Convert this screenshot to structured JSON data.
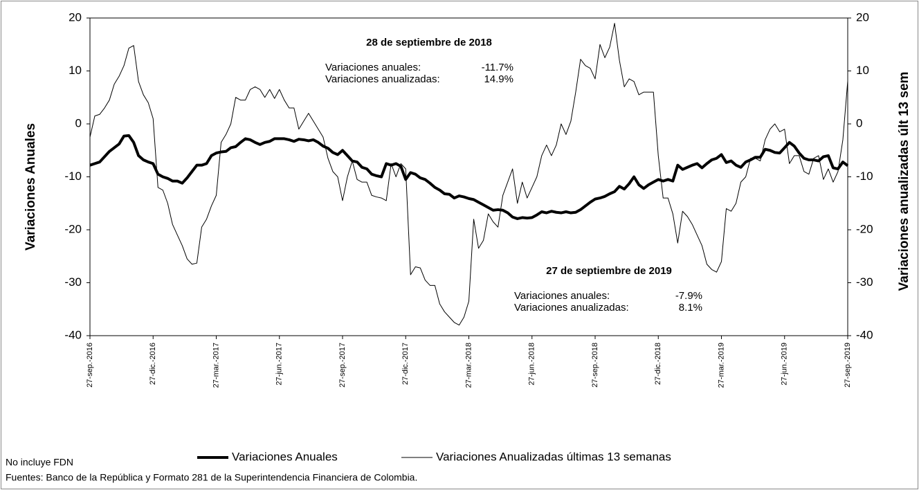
{
  "chart_data": {
    "type": "line",
    "categories": [
      "27-sep.-2016",
      null,
      null,
      null,
      null,
      null,
      null,
      null,
      null,
      null,
      null,
      null,
      null,
      "27-dic.-2016",
      null,
      null,
      null,
      null,
      null,
      null,
      null,
      null,
      null,
      null,
      null,
      null,
      "27-mar.-2017",
      null,
      null,
      null,
      null,
      null,
      null,
      null,
      null,
      null,
      null,
      null,
      null,
      "27-jun.-2017",
      null,
      null,
      null,
      null,
      null,
      null,
      null,
      null,
      null,
      null,
      null,
      null,
      "27-sep.-2017",
      null,
      null,
      null,
      null,
      null,
      null,
      null,
      null,
      null,
      null,
      null,
      null,
      "27-dic.-2017",
      null,
      null,
      null,
      null,
      null,
      null,
      null,
      null,
      null,
      null,
      null,
      null,
      "27-mar.-2018",
      null,
      null,
      null,
      null,
      null,
      null,
      null,
      null,
      null,
      null,
      null,
      null,
      "27-jun.-2018",
      null,
      null,
      null,
      null,
      null,
      null,
      null,
      null,
      null,
      null,
      null,
      null,
      "27-sep.-2018",
      null,
      null,
      null,
      null,
      null,
      null,
      null,
      null,
      null,
      null,
      null,
      null,
      "27-dic.-2018",
      null,
      null,
      null,
      null,
      null,
      null,
      null,
      null,
      null,
      null,
      null,
      null,
      "27-mar.-2019",
      null,
      null,
      null,
      null,
      null,
      null,
      null,
      null,
      null,
      null,
      null,
      null,
      "27-jun.-2019",
      null,
      null,
      null,
      null,
      null,
      null,
      null,
      null,
      null,
      null,
      null,
      null,
      "27-sep.-2019"
    ],
    "series": [
      {
        "name": "Variaciones Anuales",
        "color": "#000000",
        "width": 4,
        "values": [
          -7.8,
          -7.5,
          -7.2,
          -6.2,
          -5.2,
          -4.5,
          -3.8,
          -2.3,
          -2.2,
          -3.5,
          -6,
          -6.8,
          -7.2,
          -7.5,
          -9.5,
          -10,
          -10.3,
          -10.8,
          -10.8,
          -11.2,
          -10.2,
          -9,
          -7.8,
          -7.8,
          -7.5,
          -6,
          -5.5,
          -5.3,
          -5.2,
          -4.5,
          -4.3,
          -3.5,
          -2.8,
          -3,
          -3.5,
          -3.9,
          -3.5,
          -3.3,
          -2.8,
          -2.8,
          -2.8,
          -3,
          -3.3,
          -2.9,
          -3,
          -3.2,
          -3,
          -3.5,
          -4.2,
          -4.6,
          -5.4,
          -5.8,
          -5,
          -6,
          -7,
          -7.2,
          -8.2,
          -8.5,
          -9.5,
          -9.8,
          -10,
          -7.5,
          -7.8,
          -7.5,
          -8,
          -10.5,
          -9.2,
          -9.5,
          -10.2,
          -10.5,
          -11.2,
          -12,
          -12.5,
          -13.2,
          -13.3,
          -14,
          -13.6,
          -13.8,
          -14.1,
          -14.3,
          -14.8,
          -15.3,
          -15.8,
          -16.3,
          -16.2,
          -16.3,
          -16.8,
          -17.6,
          -17.9,
          -17.7,
          -17.8,
          -17.7,
          -17.2,
          -16.6,
          -16.8,
          -16.5,
          -16.7,
          -16.8,
          -16.6,
          -16.8,
          -16.7,
          -16.2,
          -15.5,
          -14.8,
          -14.2,
          -14,
          -13.7,
          -13.2,
          -12.8,
          -11.8,
          -12.3,
          -11.3,
          -10,
          -11.5,
          -12.2,
          -11.5,
          -11,
          -10.5,
          -10.8,
          -10.5,
          -10.8,
          -7.8,
          -8.6,
          -8.2,
          -7.8,
          -7.5,
          -8.3,
          -7.5,
          -6.8,
          -6.5,
          -5.8,
          -7.3,
          -7,
          -7.8,
          -8.2,
          -7.2,
          -6.8,
          -6.3,
          -6.3,
          -4.8,
          -5,
          -5.4,
          -5.5,
          -4.5,
          -3.5,
          -4.2,
          -5.5,
          -6.5,
          -6.8,
          -6.8,
          -7,
          -6.2,
          -6,
          -8.3,
          -8.5,
          -7.2,
          -7.9
        ]
      },
      {
        "name": "Variaciones Anualizadas últimas 13 semanas",
        "color": "#000000",
        "width": 1,
        "axis": "y2",
        "values": [
          -2.5,
          1.5,
          1.8,
          3,
          4.5,
          7.5,
          9,
          11,
          14.3,
          14.8,
          8,
          5.5,
          4,
          1,
          -12,
          -12.5,
          -15,
          -19,
          -21,
          -23,
          -25.5,
          -26.5,
          -26.3,
          -19.5,
          -18,
          -15.5,
          -13.5,
          -3.5,
          -2,
          0,
          5,
          4.5,
          4.5,
          6.5,
          7,
          6.5,
          5,
          6.5,
          4.8,
          6.5,
          4.5,
          3,
          3,
          -1,
          0.5,
          2,
          0.5,
          -1,
          -2.5,
          -6.5,
          -9,
          -10,
          -14.5,
          -10,
          -7,
          -10.5,
          -11,
          -11,
          -13.5,
          -13.8,
          -14,
          -14.5,
          -7.5,
          -10,
          -7.5,
          -8.5,
          -28.5,
          -27,
          -27.2,
          -29.5,
          -30.5,
          -30.5,
          -34,
          -35.5,
          -36.5,
          -37.5,
          -38,
          -36.5,
          -33.5,
          -18,
          -23.5,
          -22,
          -17,
          -18.5,
          -19.5,
          -13.5,
          -11,
          -8.5,
          -15,
          -11,
          -14,
          -12,
          -10,
          -6,
          -4,
          -6,
          -4,
          0,
          -2,
          0.5,
          6,
          12.2,
          11,
          10.5,
          8.5,
          15,
          12.5,
          14.5,
          19,
          12,
          7,
          8.5,
          8,
          5.5,
          6,
          6,
          6,
          -6,
          -14,
          -14,
          -17,
          -22.5,
          -16.5,
          -17.5,
          -19,
          -21,
          -23,
          -26.5,
          -27.5,
          -28,
          -26,
          -16,
          -16.5,
          -15,
          -11,
          -10,
          -6.5,
          -6.5,
          -7,
          -3,
          -1,
          0,
          -1.5,
          -1,
          -7.5,
          -6,
          -6,
          -9,
          -9.5,
          -6.5,
          -6,
          -10.5,
          -8.5,
          -11,
          -9,
          -3,
          8.1
        ]
      }
    ],
    "ylabel": "Variaciones Anuales",
    "y2label": "Variaciones anualizadas últ 13 sem",
    "ylim": [
      -40,
      20
    ],
    "yticks": [
      -40,
      -30,
      -20,
      -10,
      0,
      10,
      20
    ],
    "y2lim": [
      -40,
      20
    ],
    "y2ticks": [
      -40,
      -30,
      -20,
      -10,
      0,
      10,
      20
    ],
    "grid": false,
    "legend": "bottom",
    "annotations": [
      {
        "title": "28 de septiembre de 2018",
        "lines": [
          {
            "label": "Variaciones anuales:",
            "value": "-11.7%"
          },
          {
            "label": "Variaciones anualizadas:",
            "value": "14.9%"
          }
        ]
      },
      {
        "title": "27 de septiembre de 2019",
        "lines": [
          {
            "label": "Variaciones anuales:",
            "value": "-7.9%"
          },
          {
            "label": "Variaciones anualizadas:",
            "value": "8.1%"
          }
        ]
      }
    ],
    "notes": [
      "No incluye FDN",
      "Fuentes: Banco de la República y Formato 281 de la Superintendencia Financiera de Colombia."
    ]
  }
}
